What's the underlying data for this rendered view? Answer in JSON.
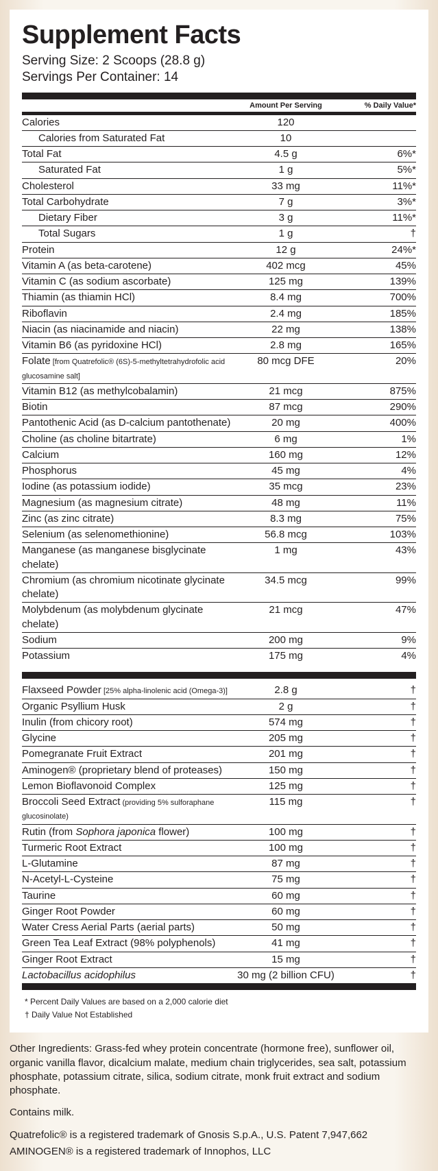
{
  "title": "Supplement Facts",
  "serving_size": "Serving Size: 2 Scoops (28.8 g)",
  "servings_per_container": "Servings Per Container: 14",
  "col_headers": {
    "amount": "Amount Per Serving",
    "dv": "% Daily Value*"
  },
  "section1": [
    {
      "name": "Calories",
      "amt": "120",
      "dv": "",
      "indent": 0
    },
    {
      "name": "Calories from Saturated Fat",
      "amt": "10",
      "dv": "",
      "indent": 1
    },
    {
      "name": "Total Fat",
      "amt": "4.5 g",
      "dv": "6%*",
      "indent": 0
    },
    {
      "name": "Saturated Fat",
      "amt": "1 g",
      "dv": "5%*",
      "indent": 1
    },
    {
      "name": "Cholesterol",
      "amt": "33 mg",
      "dv": "11%*",
      "indent": 0
    },
    {
      "name": "Total Carbohydrate",
      "amt": "7 g",
      "dv": "3%*",
      "indent": 0
    },
    {
      "name": "Dietary Fiber",
      "amt": "3 g",
      "dv": "11%*",
      "indent": 1
    },
    {
      "name": "Total Sugars",
      "amt": "1 g",
      "dv": "†",
      "indent": 1
    },
    {
      "name": "Protein",
      "amt": "12 g",
      "dv": "24%*",
      "indent": 0
    },
    {
      "name": "Vitamin A (as beta-carotene)",
      "amt": "402 mcg",
      "dv": "45%",
      "indent": 0
    },
    {
      "name": "Vitamin C (as sodium ascorbate)",
      "amt": "125 mg",
      "dv": "139%",
      "indent": 0
    },
    {
      "name": "Thiamin (as thiamin HCl)",
      "amt": "8.4 mg",
      "dv": "700%",
      "indent": 0
    },
    {
      "name": "Riboflavin",
      "amt": "2.4 mg",
      "dv": "185%",
      "indent": 0
    },
    {
      "name": "Niacin (as niacinamide and niacin)",
      "amt": "22 mg",
      "dv": "138%",
      "indent": 0
    },
    {
      "name": "Vitamin B6 (as pyridoxine HCl)",
      "amt": "2.8 mg",
      "dv": "165%",
      "indent": 0
    },
    {
      "name": "Folate",
      "sub": " [from Quatrefolic® (6S)-5-methyltetrahydrofolic acid glucosamine salt]",
      "amt": "80 mcg DFE",
      "dv": "20%",
      "indent": 0
    },
    {
      "name": "Vitamin B12 (as methylcobalamin)",
      "amt": "21 mcg",
      "dv": "875%",
      "indent": 0
    },
    {
      "name": "Biotin",
      "amt": "87 mcg",
      "dv": "290%",
      "indent": 0
    },
    {
      "name": "Pantothenic Acid (as D-calcium pantothenate)",
      "amt": "20 mg",
      "dv": "400%",
      "indent": 0
    },
    {
      "name": "Choline (as choline bitartrate)",
      "amt": "6 mg",
      "dv": "1%",
      "indent": 0
    },
    {
      "name": "Calcium",
      "amt": "160 mg",
      "dv": "12%",
      "indent": 0
    },
    {
      "name": "Phosphorus",
      "amt": "45 mg",
      "dv": "4%",
      "indent": 0
    },
    {
      "name": "Iodine (as potassium iodide)",
      "amt": "35 mcg",
      "dv": "23%",
      "indent": 0
    },
    {
      "name": "Magnesium (as magnesium citrate)",
      "amt": "48 mg",
      "dv": "11%",
      "indent": 0
    },
    {
      "name": "Zinc (as zinc citrate)",
      "amt": "8.3 mg",
      "dv": "75%",
      "indent": 0
    },
    {
      "name": "Selenium (as selenomethionine)",
      "amt": "56.8 mcg",
      "dv": "103%",
      "indent": 0
    },
    {
      "name": "Manganese (as manganese bisglycinate chelate)",
      "amt": "1 mg",
      "dv": "43%",
      "indent": 0
    },
    {
      "name": "Chromium (as chromium nicotinate glycinate chelate)",
      "amt": "34.5 mcg",
      "dv": "99%",
      "indent": 0
    },
    {
      "name": "Molybdenum (as molybdenum glycinate chelate)",
      "amt": "21 mcg",
      "dv": "47%",
      "indent": 0
    },
    {
      "name": "Sodium",
      "amt": "200 mg",
      "dv": "9%",
      "indent": 0
    },
    {
      "name": "Potassium",
      "amt": "175 mg",
      "dv": "4%",
      "indent": 0
    }
  ],
  "section2": [
    {
      "name": "Flaxseed Powder",
      "sub": " [25% alpha-linolenic acid (Omega-3)]",
      "amt": "2.8 g",
      "dv": "†"
    },
    {
      "name": "Organic Psyllium Husk",
      "amt": "2 g",
      "dv": "†"
    },
    {
      "name": "Inulin (from chicory root)",
      "amt": "574 mg",
      "dv": "†"
    },
    {
      "name": "Glycine",
      "amt": "205 mg",
      "dv": "†"
    },
    {
      "name": "Pomegranate Fruit Extract",
      "amt": "201 mg",
      "dv": "†"
    },
    {
      "name": "Aminogen® (proprietary blend of proteases)",
      "amt": "150 mg",
      "dv": "†"
    },
    {
      "name": "Lemon Bioflavonoid Complex",
      "amt": "125 mg",
      "dv": "†"
    },
    {
      "name": "Broccoli Seed Extract",
      "sub": " (providing 5% sulforaphane glucosinolate)",
      "amt": "115 mg",
      "dv": "†"
    },
    {
      "name_html": "Rutin (from <span class=\"italic\">Sophora japonica</span> flower)",
      "amt": "100 mg",
      "dv": "†"
    },
    {
      "name": "Turmeric Root Extract",
      "amt": "100 mg",
      "dv": "†"
    },
    {
      "name": "L-Glutamine",
      "amt": "87 mg",
      "dv": "†"
    },
    {
      "name": "N-Acetyl-L-Cysteine",
      "amt": "75 mg",
      "dv": "†"
    },
    {
      "name": "Taurine",
      "amt": "60 mg",
      "dv": "†"
    },
    {
      "name": "Ginger Root Powder",
      "amt": "60 mg",
      "dv": "†"
    },
    {
      "name": "Water Cress Aerial Parts (aerial parts)",
      "amt": "50 mg",
      "dv": "†"
    },
    {
      "name": "Green Tea Leaf Extract (98% polyphenols)",
      "amt": "41 mg",
      "dv": "†"
    },
    {
      "name": "Ginger Root Extract",
      "amt": "15 mg",
      "dv": "†"
    },
    {
      "name_html": "<span class=\"italic\">Lactobacillus acidophilus</span>",
      "amt": "30 mg (2 billion CFU)",
      "dv": "†",
      "last": true
    }
  ],
  "footnotes": [
    "* Percent Daily Values are based on a 2,000 calorie diet",
    "† Daily Value Not Established"
  ],
  "outside": {
    "other_ingredients": "Other Ingredients: Grass-fed whey protein concentrate (hormone free), sunflower oil, organic vanilla flavor, dicalcium malate, medium chain triglycerides, sea salt, potassium phosphate, potassium citrate, silica, sodium citrate, monk fruit extract and sodium phosphate.",
    "contains": "Contains milk.",
    "tm1": "Quatrefolic® is a registered trademark of Gnosis S.p.A., U.S. Patent 7,947,662",
    "tm2": "AMINOGEN® is a registered trademark of Innophos, LLC"
  }
}
